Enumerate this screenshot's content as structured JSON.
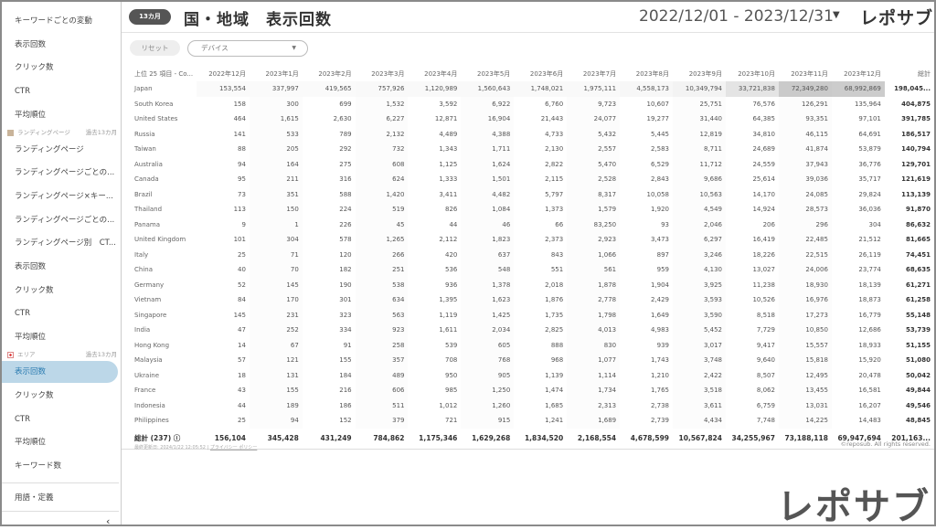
{
  "sidebar": {
    "items_top": [
      "キーワードごとの変動",
      "表示回数",
      "クリック数",
      "CTR",
      "平均順位"
    ],
    "section_lp": {
      "label": "ランディングページ",
      "period": "過去13カ月"
    },
    "items_lp": [
      "ランディングページ",
      "ランディングページごとの...",
      "ランディングページ×キー...",
      "ランディングページごとの...",
      "ランディングページ別　CT...",
      "表示回数",
      "クリック数",
      "CTR",
      "平均順位"
    ],
    "section_area": {
      "label": "エリア",
      "period": "過去13カ月"
    },
    "items_area": [
      "表示回数",
      "クリック数",
      "CTR",
      "平均順位",
      "キーワード数"
    ],
    "active": "表示回数",
    "glossary": "用語・定義",
    "collapse": "‹"
  },
  "header": {
    "badge": "13カ月",
    "title": "国・地域　表示回数",
    "date_range": "2022/12/01 - 2023/12/31",
    "caret": "▼",
    "logo": "レポサブ"
  },
  "filters": {
    "reset": "リセット",
    "device": "デバイス",
    "device_caret": "▼"
  },
  "table": {
    "name_header": "上位 25 項目 - Co...",
    "months": [
      "2022年12月",
      "2023年1月",
      "2023年2月",
      "2023年3月",
      "2023年4月",
      "2023年5月",
      "2023年6月",
      "2023年7月",
      "2023年8月",
      "2023年9月",
      "2023年10月",
      "2023年11月",
      "2023年12月"
    ],
    "total_header": "総計",
    "rows": [
      {
        "name": "Japan",
        "values": [
          "153,554",
          "337,997",
          "419,565",
          "757,926",
          "1,120,989",
          "1,560,643",
          "1,748,021",
          "1,975,111",
          "4,558,173",
          "10,349,794",
          "33,721,838",
          "72,349,280",
          "68,992,869"
        ],
        "total": "198,045..."
      },
      {
        "name": "South Korea",
        "values": [
          "158",
          "300",
          "699",
          "1,532",
          "3,592",
          "6,922",
          "6,760",
          "9,723",
          "10,607",
          "25,751",
          "76,576",
          "126,291",
          "135,964"
        ],
        "total": "404,875"
      },
      {
        "name": "United States",
        "values": [
          "464",
          "1,615",
          "2,630",
          "6,227",
          "12,871",
          "16,904",
          "21,443",
          "24,077",
          "19,277",
          "31,440",
          "64,385",
          "93,351",
          "97,101"
        ],
        "total": "391,785"
      },
      {
        "name": "Russia",
        "values": [
          "141",
          "533",
          "789",
          "2,132",
          "4,489",
          "4,388",
          "4,733",
          "5,432",
          "5,445",
          "12,819",
          "34,810",
          "46,115",
          "64,691"
        ],
        "total": "186,517"
      },
      {
        "name": "Taiwan",
        "values": [
          "88",
          "205",
          "292",
          "732",
          "1,343",
          "1,711",
          "2,130",
          "2,557",
          "2,583",
          "8,711",
          "24,689",
          "41,874",
          "53,879"
        ],
        "total": "140,794"
      },
      {
        "name": "Australia",
        "values": [
          "94",
          "164",
          "275",
          "608",
          "1,125",
          "1,624",
          "2,822",
          "5,470",
          "6,529",
          "11,712",
          "24,559",
          "37,943",
          "36,776"
        ],
        "total": "129,701"
      },
      {
        "name": "Canada",
        "values": [
          "95",
          "211",
          "316",
          "624",
          "1,333",
          "1,501",
          "2,115",
          "2,528",
          "2,843",
          "9,686",
          "25,614",
          "39,036",
          "35,717"
        ],
        "total": "121,619"
      },
      {
        "name": "Brazil",
        "values": [
          "73",
          "351",
          "588",
          "1,420",
          "3,411",
          "4,482",
          "5,797",
          "8,317",
          "10,058",
          "10,563",
          "14,170",
          "24,085",
          "29,824"
        ],
        "total": "113,139"
      },
      {
        "name": "Thailand",
        "values": [
          "113",
          "150",
          "224",
          "519",
          "826",
          "1,084",
          "1,373",
          "1,579",
          "1,920",
          "4,549",
          "14,924",
          "28,573",
          "36,036"
        ],
        "total": "91,870"
      },
      {
        "name": "Panama",
        "values": [
          "9",
          "1",
          "226",
          "45",
          "44",
          "46",
          "66",
          "83,250",
          "93",
          "2,046",
          "206",
          "296",
          "304"
        ],
        "total": "86,632"
      },
      {
        "name": "United Kingdom",
        "values": [
          "101",
          "304",
          "578",
          "1,265",
          "2,112",
          "1,823",
          "2,373",
          "2,923",
          "3,473",
          "6,297",
          "16,419",
          "22,485",
          "21,512"
        ],
        "total": "81,665"
      },
      {
        "name": "Italy",
        "values": [
          "25",
          "71",
          "120",
          "266",
          "420",
          "637",
          "843",
          "1,066",
          "897",
          "3,246",
          "18,226",
          "22,515",
          "26,119"
        ],
        "total": "74,451"
      },
      {
        "name": "China",
        "values": [
          "40",
          "70",
          "182",
          "251",
          "536",
          "548",
          "551",
          "561",
          "959",
          "4,130",
          "13,027",
          "24,006",
          "23,774"
        ],
        "total": "68,635"
      },
      {
        "name": "Germany",
        "values": [
          "52",
          "145",
          "190",
          "538",
          "936",
          "1,378",
          "2,018",
          "1,878",
          "1,904",
          "3,925",
          "11,238",
          "18,930",
          "18,139"
        ],
        "total": "61,271"
      },
      {
        "name": "Vietnam",
        "values": [
          "84",
          "170",
          "301",
          "634",
          "1,395",
          "1,623",
          "1,876",
          "2,778",
          "2,429",
          "3,593",
          "10,526",
          "16,976",
          "18,873"
        ],
        "total": "61,258"
      },
      {
        "name": "Singapore",
        "values": [
          "145",
          "231",
          "323",
          "563",
          "1,119",
          "1,425",
          "1,735",
          "1,798",
          "1,649",
          "3,590",
          "8,518",
          "17,273",
          "16,779"
        ],
        "total": "55,148"
      },
      {
        "name": "India",
        "values": [
          "47",
          "252",
          "334",
          "923",
          "1,611",
          "2,034",
          "2,825",
          "4,013",
          "4,983",
          "5,452",
          "7,729",
          "10,850",
          "12,686"
        ],
        "total": "53,739"
      },
      {
        "name": "Hong Kong",
        "values": [
          "14",
          "67",
          "91",
          "258",
          "539",
          "605",
          "888",
          "830",
          "939",
          "3,017",
          "9,417",
          "15,557",
          "18,933"
        ],
        "total": "51,155"
      },
      {
        "name": "Malaysia",
        "values": [
          "57",
          "121",
          "155",
          "357",
          "708",
          "768",
          "968",
          "1,077",
          "1,743",
          "3,748",
          "9,640",
          "15,818",
          "15,920"
        ],
        "total": "51,080"
      },
      {
        "name": "Ukraine",
        "values": [
          "18",
          "131",
          "184",
          "489",
          "950",
          "905",
          "1,139",
          "1,114",
          "1,210",
          "2,422",
          "8,507",
          "12,495",
          "20,478"
        ],
        "total": "50,042"
      },
      {
        "name": "France",
        "values": [
          "43",
          "155",
          "216",
          "606",
          "985",
          "1,250",
          "1,474",
          "1,734",
          "1,765",
          "3,518",
          "8,062",
          "13,455",
          "16,581"
        ],
        "total": "49,844"
      },
      {
        "name": "Indonesia",
        "values": [
          "44",
          "189",
          "186",
          "511",
          "1,012",
          "1,260",
          "1,685",
          "2,313",
          "2,738",
          "3,611",
          "6,759",
          "13,031",
          "16,207"
        ],
        "total": "49,546"
      },
      {
        "name": "Philippines",
        "values": [
          "25",
          "94",
          "152",
          "379",
          "721",
          "915",
          "1,241",
          "1,689",
          "2,739",
          "4,434",
          "7,748",
          "14,225",
          "14,483"
        ],
        "total": "48,845"
      }
    ],
    "grand_total": {
      "label": "総計 (237) ⓘ",
      "values": [
        "156,104",
        "345,428",
        "431,249",
        "784,862",
        "1,175,346",
        "1,629,268",
        "1,834,520",
        "2,168,554",
        "4,678,599",
        "10,567,824",
        "34,255,967",
        "73,188,118",
        "69,947,694"
      ],
      "total": "201,163..."
    }
  },
  "footer": {
    "updated": "最終更新日: 2024/1/22 12:05:52",
    "separator": "|",
    "privacy": "プライバシー ポリシー",
    "copyright": "©reposub. All rights reserved."
  },
  "watermark_logo": "レポサブ",
  "colors": {
    "active_bg": "#bcd7e8",
    "active_text": "#2a7bb0",
    "heat_max": "#cfcfcf"
  }
}
